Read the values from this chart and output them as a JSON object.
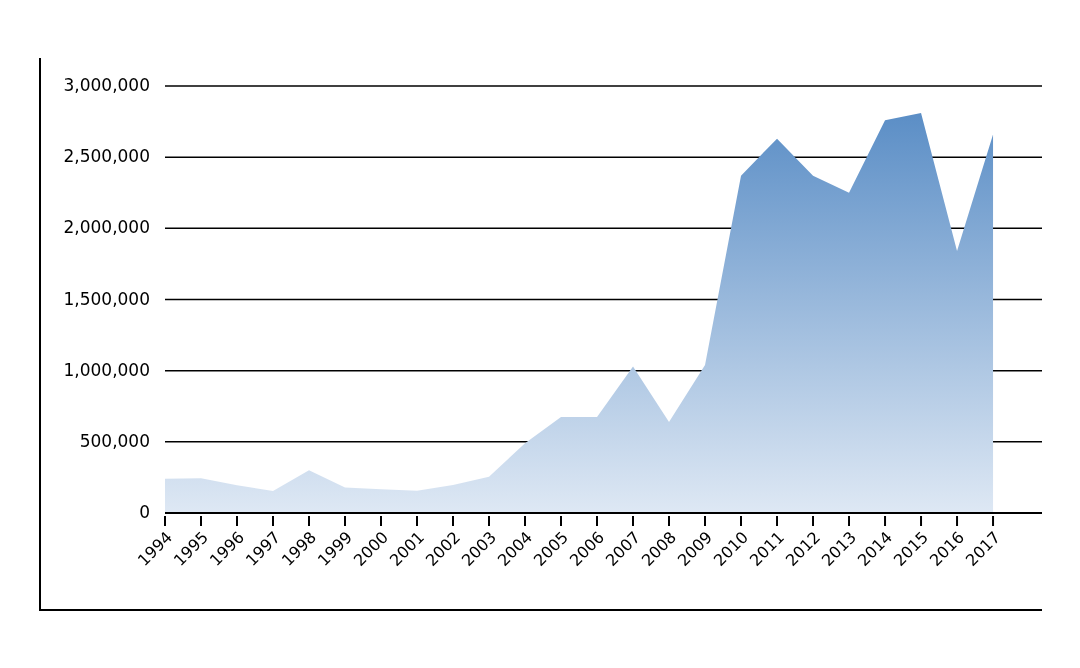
{
  "chart_data": {
    "type": "area",
    "color": "#5b8ec6",
    "x": [
      1994,
      1995,
      1996,
      1997,
      1998,
      1999,
      2000,
      2001,
      2002,
      2003,
      2004,
      2005,
      2006,
      2007,
      2008,
      2009,
      2010,
      2011,
      2012,
      2013,
      2014,
      2015,
      2016,
      2017
    ],
    "values": [
      240000,
      245000,
      195000,
      155000,
      300000,
      180000,
      166000,
      157000,
      197000,
      255000,
      490000,
      675000,
      675000,
      1030000,
      640000,
      1040000,
      2370000,
      2630000,
      2370000,
      2250000,
      2760000,
      2810000,
      1840000,
      2660000
    ],
    "xlim": [
      1994,
      2018.36
    ],
    "xticks": [
      1994,
      1995,
      1996,
      1997,
      1998,
      1999,
      2000,
      2001,
      2002,
      2003,
      2004,
      2005,
      2006,
      2007,
      2008,
      2009,
      2010,
      2011,
      2012,
      2013,
      2014,
      2015,
      2016,
      2017
    ],
    "ylim": [
      0,
      3000000
    ],
    "yticks": [
      0,
      {
        "value": 500000,
        "label": "500,000"
      },
      {
        "value": 1000000,
        "label": "1,000,000"
      },
      {
        "value": 1500000,
        "label": "1,500,000"
      },
      {
        "value": 2000000,
        "label": "2,000,000"
      },
      {
        "value": 2500000,
        "label": "2,500,000"
      },
      {
        "value": 3000000,
        "label": "3,000,000"
      }
    ],
    "grid": "y"
  }
}
